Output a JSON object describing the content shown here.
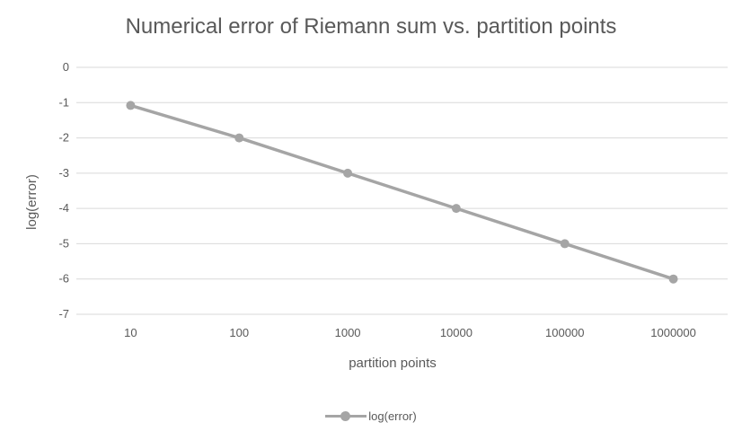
{
  "chart_data": {
    "type": "line",
    "title": "Numerical error of Riemann sum vs. partition points",
    "xlabel": "partition points",
    "ylabel": "log(error)",
    "categories": [
      "10",
      "100",
      "1000",
      "10000",
      "100000",
      "1000000"
    ],
    "series": [
      {
        "name": "log(error)",
        "values": [
          -1.08,
          -2.0,
          -3.0,
          -4.0,
          -5.0,
          -6.0
        ],
        "color": "#a5a5a5"
      }
    ],
    "ylim": [
      -7,
      0
    ],
    "yticks": [
      "0",
      "-1",
      "-2",
      "-3",
      "-4",
      "-5",
      "-6",
      "-7"
    ],
    "grid": true,
    "legend_position": "bottom",
    "gridline_color": "#d9d9d9",
    "text_color": "#595959"
  }
}
